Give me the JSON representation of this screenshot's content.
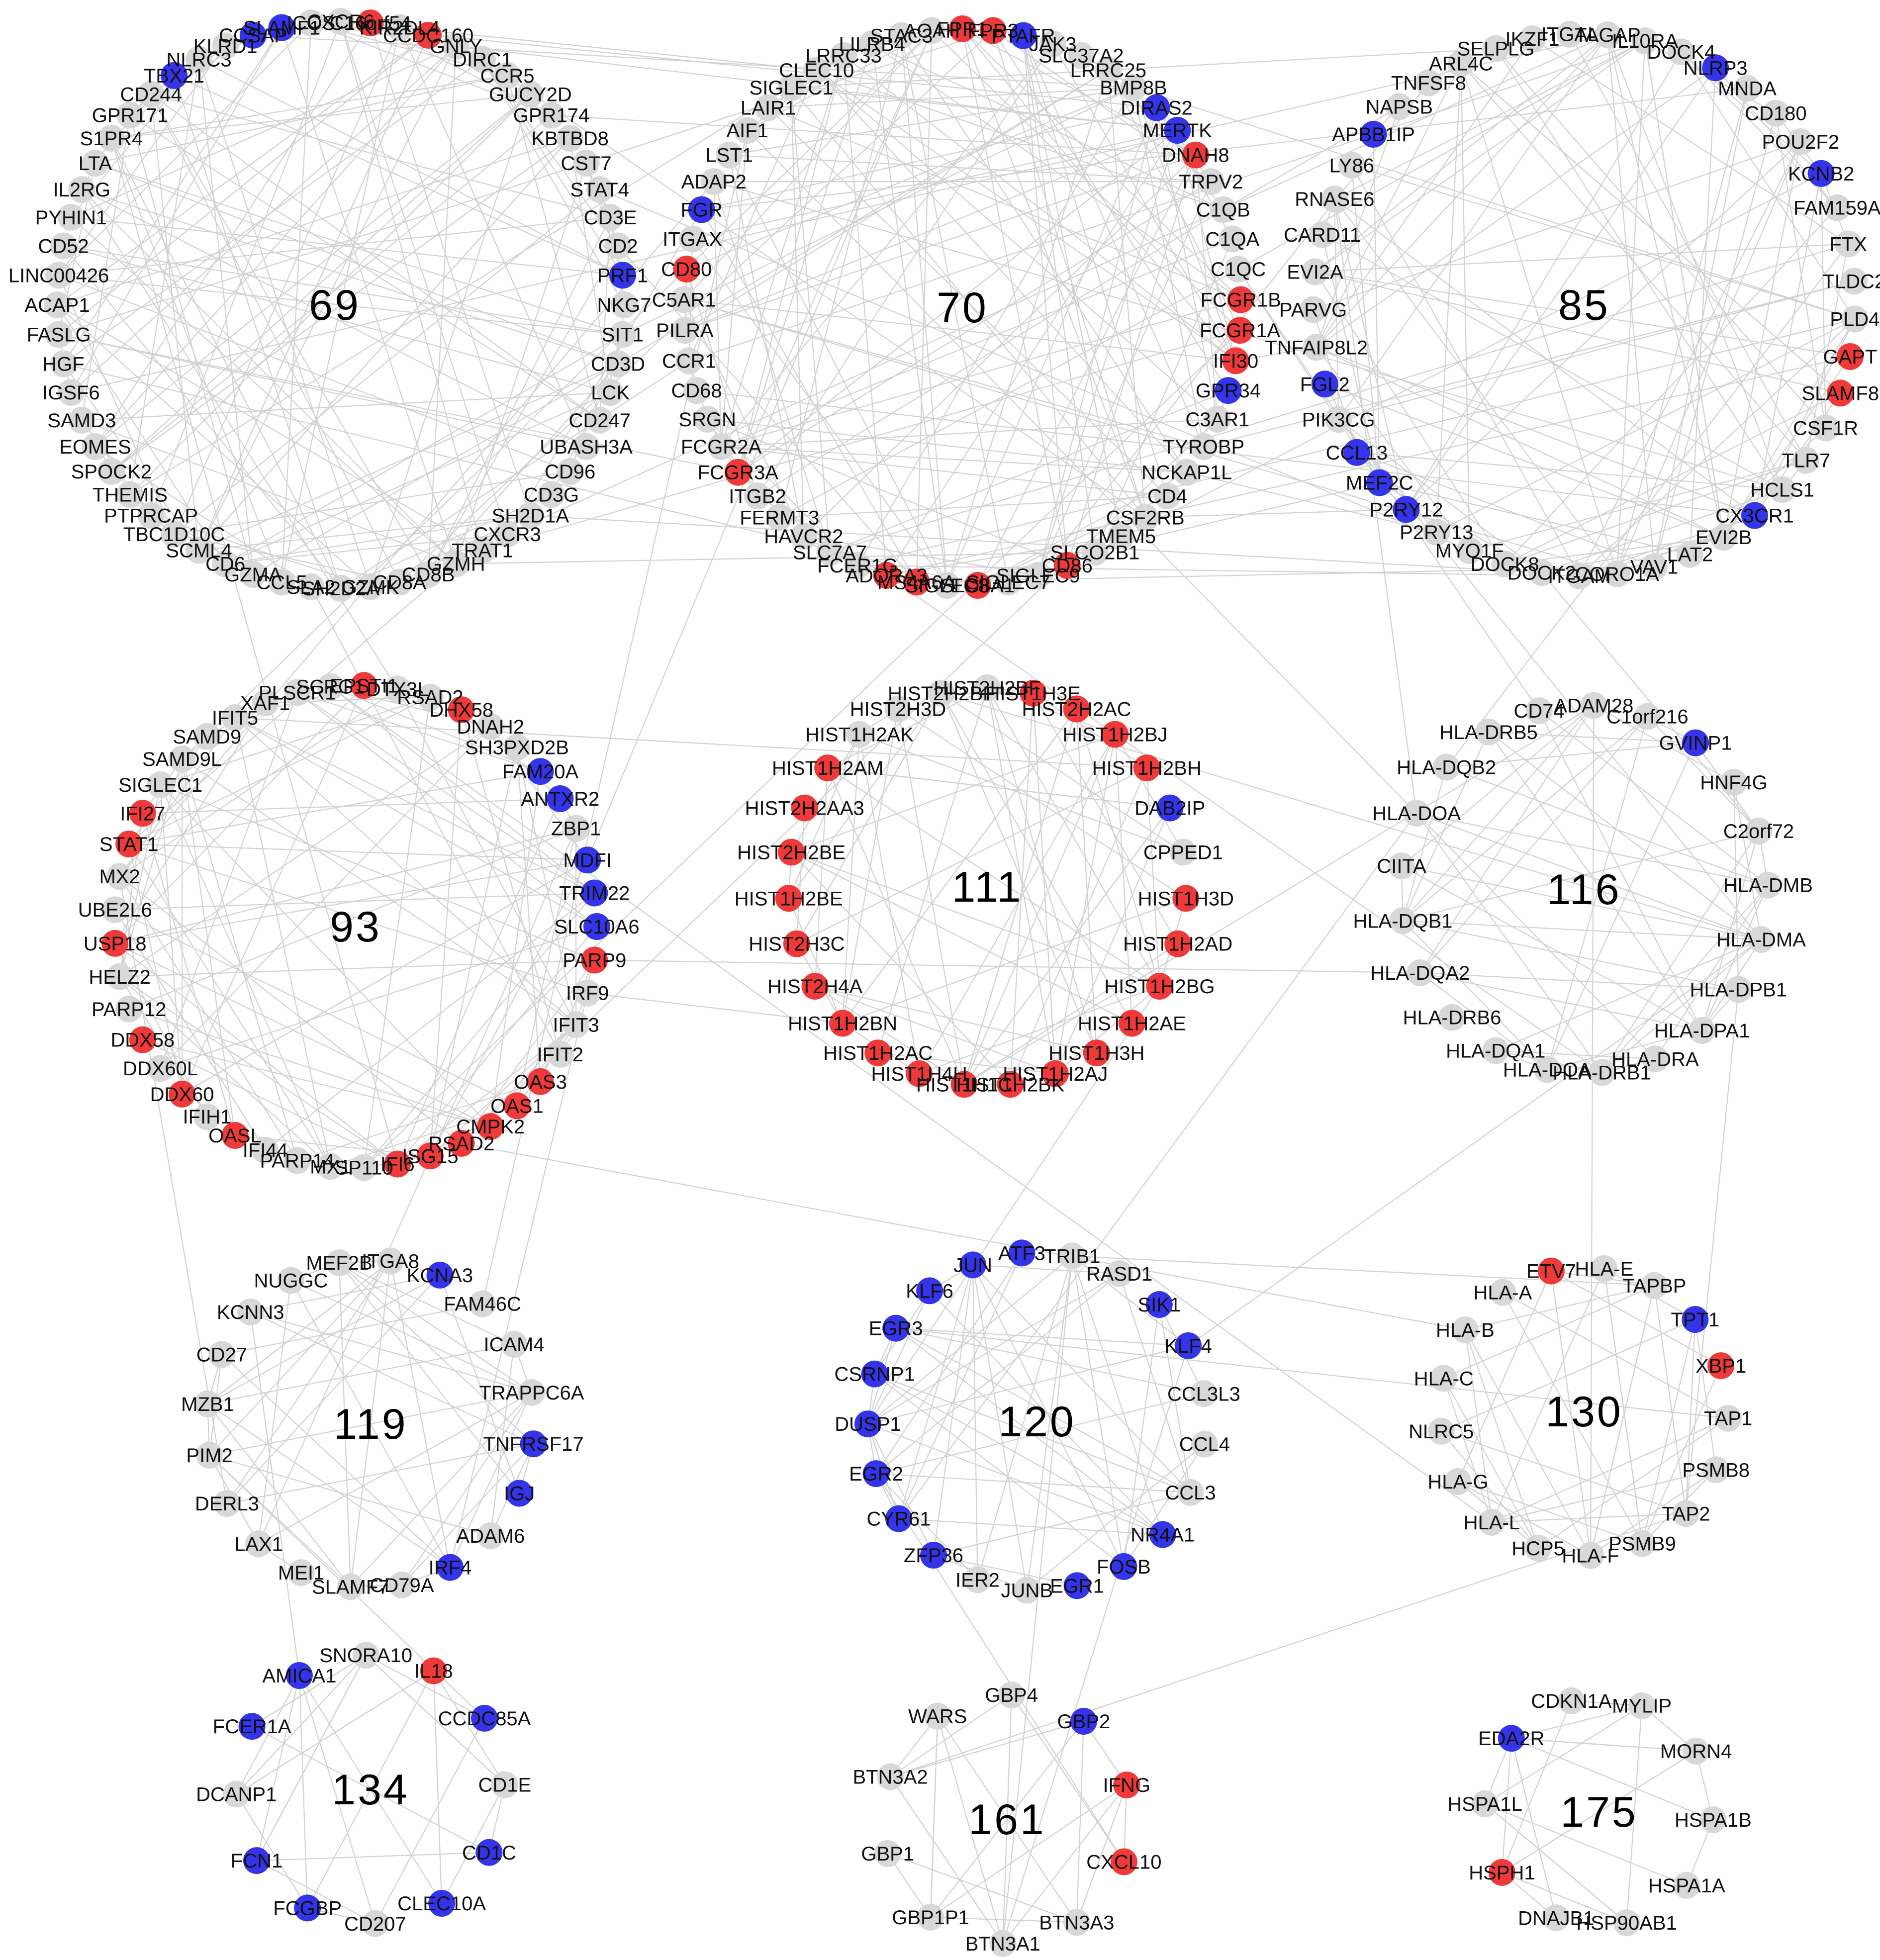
{
  "colors": {
    "up": "#f03a3a",
    "down": "#3434ea",
    "neutral": "#d8d8d8",
    "edge": "#d2d2d2"
  },
  "modules": [
    {
      "id": "69",
      "genes": [
        [
          "CXCR6",
          "n"
        ],
        [
          "C16orf54",
          "u"
        ],
        [
          "KIR2DL4",
          "n"
        ],
        [
          "CCDC160",
          "u"
        ],
        [
          "GNLY",
          "n"
        ],
        [
          "DIRC1",
          "n"
        ],
        [
          "CCR5",
          "n"
        ],
        [
          "GUCY2D",
          "n"
        ],
        [
          "GPR174",
          "n"
        ],
        [
          "KBTBD8",
          "n"
        ],
        [
          "CST7",
          "n"
        ],
        [
          "STAT4",
          "n"
        ],
        [
          "CD3E",
          "n"
        ],
        [
          "CD2",
          "n"
        ],
        [
          "PRF1",
          "d"
        ],
        [
          "NKG7",
          "n"
        ],
        [
          "SIT1",
          "n"
        ],
        [
          "CD3D",
          "n"
        ],
        [
          "LCK",
          "n"
        ],
        [
          "CD247",
          "n"
        ],
        [
          "UBASH3A",
          "n"
        ],
        [
          "CD96",
          "n"
        ],
        [
          "CD3G",
          "n"
        ],
        [
          "SH2D1A",
          "n"
        ],
        [
          "CXCR3",
          "n"
        ],
        [
          "TRAT1",
          "n"
        ],
        [
          "GZMH",
          "n"
        ],
        [
          "CD8B",
          "n"
        ],
        [
          "CD8A",
          "n"
        ],
        [
          "GZMK",
          "n"
        ],
        [
          "SH2D2A",
          "n"
        ],
        [
          "SLA2",
          "n"
        ],
        [
          "CCL5",
          "n"
        ],
        [
          "GZMA",
          "n"
        ],
        [
          "CD6",
          "n"
        ],
        [
          "SCML4",
          "n"
        ],
        [
          "TBC1D10C",
          "n"
        ],
        [
          "PTPRCAP",
          "n"
        ],
        [
          "THEMIS",
          "n"
        ],
        [
          "SPOCK2",
          "n"
        ],
        [
          "EOMES",
          "n"
        ],
        [
          "SAMD3",
          "n"
        ],
        [
          "IGSF6",
          "n"
        ],
        [
          "HGF",
          "n"
        ],
        [
          "FASLG",
          "n"
        ],
        [
          "ACAP1",
          "n"
        ],
        [
          "LINC00426",
          "n"
        ],
        [
          "CD52",
          "n"
        ],
        [
          "PYHIN1",
          "n"
        ],
        [
          "IL2RG",
          "n"
        ],
        [
          "LTA",
          "n"
        ],
        [
          "S1PR4",
          "n"
        ],
        [
          "GPR171",
          "n"
        ],
        [
          "CD244",
          "n"
        ],
        [
          "TBX21",
          "d"
        ],
        [
          "NLRC3",
          "n"
        ],
        [
          "KLRD1",
          "n"
        ],
        [
          "CCSAP",
          "d"
        ],
        [
          "SLAMF1",
          "d"
        ],
        [
          "ICOS",
          "n"
        ]
      ]
    },
    {
      "id": "70",
      "genes": [
        [
          "FPR1",
          "u"
        ],
        [
          "FPR3",
          "u"
        ],
        [
          "PTAFR",
          "d"
        ],
        [
          "JAK3",
          "n"
        ],
        [
          "SLC37A2",
          "n"
        ],
        [
          "LRRC25",
          "n"
        ],
        [
          "BMP8B",
          "n"
        ],
        [
          "DIRAS2",
          "d"
        ],
        [
          "MERTK",
          "d"
        ],
        [
          "DNAH8",
          "u"
        ],
        [
          "TRPV2",
          "n"
        ],
        [
          "C1QB",
          "n"
        ],
        [
          "C1QA",
          "n"
        ],
        [
          "C1QC",
          "n"
        ],
        [
          "FCGR1B",
          "u"
        ],
        [
          "FCGR1A",
          "u"
        ],
        [
          "IFI30",
          "u"
        ],
        [
          "GPR34",
          "d"
        ],
        [
          "C3AR1",
          "n"
        ],
        [
          "TYROBP",
          "n"
        ],
        [
          "NCKAP1L",
          "n"
        ],
        [
          "CD4",
          "n"
        ],
        [
          "CSF2RB",
          "n"
        ],
        [
          "TMEM5",
          "n"
        ],
        [
          "SLCO2B1",
          "n"
        ],
        [
          "CD86",
          "u"
        ],
        [
          "SIGLEC9",
          "n"
        ],
        [
          "SIGLEC7",
          "n"
        ],
        [
          "SLC8A1",
          "u"
        ],
        [
          "SIGLEC8",
          "n"
        ],
        [
          "MS4A6A",
          "u"
        ],
        [
          "ADORA3",
          "u"
        ],
        [
          "FCER1G",
          "n"
        ],
        [
          "SLC7A7",
          "n"
        ],
        [
          "HAVCR2",
          "n"
        ],
        [
          "FERMT3",
          "n"
        ],
        [
          "ITGB2",
          "n"
        ],
        [
          "FCGR3A",
          "u"
        ],
        [
          "FCGR2A",
          "n"
        ],
        [
          "SRGN",
          "n"
        ],
        [
          "CD68",
          "n"
        ],
        [
          "CCR1",
          "n"
        ],
        [
          "PILRA",
          "n"
        ],
        [
          "C5AR1",
          "n"
        ],
        [
          "CD80",
          "u"
        ],
        [
          "ITGAX",
          "n"
        ],
        [
          "FGR",
          "d"
        ],
        [
          "ADAP2",
          "n"
        ],
        [
          "LST1",
          "n"
        ],
        [
          "AIF1",
          "n"
        ],
        [
          "LAIR1",
          "n"
        ],
        [
          "SIGLEC1",
          "n"
        ],
        [
          "CLEC10",
          "n"
        ],
        [
          "LRRC33",
          "n"
        ],
        [
          "LILRB4",
          "n"
        ],
        [
          "STAC3",
          "n"
        ],
        [
          "AOAH",
          "n"
        ]
      ]
    },
    {
      "id": "85",
      "genes": [
        [
          "TAGAP",
          "n"
        ],
        [
          "IL10RA",
          "n"
        ],
        [
          "DOCK4",
          "n"
        ],
        [
          "NLRP3",
          "d"
        ],
        [
          "MNDA",
          "n"
        ],
        [
          "CD180",
          "n"
        ],
        [
          "POU2F2",
          "n"
        ],
        [
          "KCNB2",
          "d"
        ],
        [
          "FAM159A",
          "n"
        ],
        [
          "FTX",
          "n"
        ],
        [
          "TLDC2",
          "n"
        ],
        [
          "PLD4",
          "n"
        ],
        [
          "GAPT",
          "u"
        ],
        [
          "SLAMF8",
          "u"
        ],
        [
          "CSF1R",
          "n"
        ],
        [
          "TLR7",
          "n"
        ],
        [
          "HCLS1",
          "n"
        ],
        [
          "CX3CR1",
          "d"
        ],
        [
          "EVI2B",
          "n"
        ],
        [
          "LAT2",
          "n"
        ],
        [
          "VAV1",
          "n"
        ],
        [
          "CORO1A",
          "n"
        ],
        [
          "ITGAM",
          "n"
        ],
        [
          "DOCK2",
          "n"
        ],
        [
          "DOCK8",
          "n"
        ],
        [
          "MYO1F",
          "n"
        ],
        [
          "P2RY13",
          "n"
        ],
        [
          "P2RY12",
          "d"
        ],
        [
          "MEF2C",
          "d"
        ],
        [
          "CCL13",
          "d"
        ],
        [
          "PIK3CG",
          "n"
        ],
        [
          "FGL2",
          "d"
        ],
        [
          "TNFAIP8L2",
          "n"
        ],
        [
          "PARVG",
          "n"
        ],
        [
          "EVI2A",
          "n"
        ],
        [
          "CARD11",
          "n"
        ],
        [
          "RNASE6",
          "n"
        ],
        [
          "LY86",
          "n"
        ],
        [
          "APBB1IP",
          "d"
        ],
        [
          "NAPSB",
          "n"
        ],
        [
          "TNFSF8",
          "n"
        ],
        [
          "ARL4C",
          "n"
        ],
        [
          "SELPLG",
          "n"
        ],
        [
          "IKZF1",
          "n"
        ],
        [
          "ITGAL",
          "n"
        ]
      ]
    },
    {
      "id": "93",
      "genes": [
        [
          "DTX3L",
          "n"
        ],
        [
          "RSAD2",
          "n"
        ],
        [
          "DHX58",
          "u"
        ],
        [
          "DNAH2",
          "n"
        ],
        [
          "SH3PXD2B",
          "n"
        ],
        [
          "FAM20A",
          "d"
        ],
        [
          "ANTXR2",
          "d"
        ],
        [
          "ZBP1",
          "n"
        ],
        [
          "MDFI",
          "d"
        ],
        [
          "TRIM22",
          "d"
        ],
        [
          "SLC10A6",
          "d"
        ],
        [
          "PARP9",
          "u"
        ],
        [
          "IRF9",
          "n"
        ],
        [
          "IFIT3",
          "n"
        ],
        [
          "IFIT2",
          "n"
        ],
        [
          "OAS3",
          "u"
        ],
        [
          "OAS1",
          "u"
        ],
        [
          "CMPK2",
          "u"
        ],
        [
          "RSAD2",
          "u"
        ],
        [
          "ISG15",
          "u"
        ],
        [
          "IFI6",
          "u"
        ],
        [
          "SP110",
          "n"
        ],
        [
          "MX1",
          "n"
        ],
        [
          "PARP14",
          "n"
        ],
        [
          "IFI44",
          "n"
        ],
        [
          "OASL",
          "u"
        ],
        [
          "IFIH1",
          "n"
        ],
        [
          "DDX60",
          "u"
        ],
        [
          "DDX60L",
          "n"
        ],
        [
          "DDX58",
          "u"
        ],
        [
          "PARP12",
          "n"
        ],
        [
          "HELZ2",
          "n"
        ],
        [
          "USP18",
          "u"
        ],
        [
          "UBE2L6",
          "n"
        ],
        [
          "MX2",
          "n"
        ],
        [
          "STAT1",
          "u"
        ],
        [
          "IFI27",
          "u"
        ],
        [
          "SIGLEC1",
          "n"
        ],
        [
          "SAMD9L",
          "n"
        ],
        [
          "SAMD9",
          "n"
        ],
        [
          "IFIT5",
          "n"
        ],
        [
          "XAF1",
          "n"
        ],
        [
          "PLSCR1",
          "n"
        ],
        [
          "SCRG1",
          "n"
        ],
        [
          "EPSTI1",
          "u"
        ]
      ]
    },
    {
      "id": "111",
      "genes": [
        [
          "HIST2H2BF",
          "n"
        ],
        [
          "HIST1H3E",
          "u"
        ],
        [
          "HIST2H2AC",
          "u"
        ],
        [
          "HIST1H2BJ",
          "u"
        ],
        [
          "HIST1H2BH",
          "u"
        ],
        [
          "DAB2IP",
          "d"
        ],
        [
          "CPPED1",
          "n"
        ],
        [
          "HIST1H3D",
          "u"
        ],
        [
          "HIST1H2AD",
          "u"
        ],
        [
          "HIST1H2BG",
          "u"
        ],
        [
          "HIST1H2AE",
          "u"
        ],
        [
          "HIST1H3H",
          "u"
        ],
        [
          "HIST1H2AJ",
          "u"
        ],
        [
          "HIST1H2BK",
          "u"
        ],
        [
          "HIST1H1C",
          "u"
        ],
        [
          "HIST1H4H",
          "u"
        ],
        [
          "HIST1H2AC",
          "u"
        ],
        [
          "HIST1H2BN",
          "u"
        ],
        [
          "HIST2H4A",
          "u"
        ],
        [
          "HIST2H3C",
          "u"
        ],
        [
          "HIST1H2BE",
          "u"
        ],
        [
          "HIST2H2BE",
          "u"
        ],
        [
          "HIST2H2AA3",
          "u"
        ],
        [
          "HIST1H2AM",
          "u"
        ],
        [
          "HIST1H2AK",
          "n"
        ],
        [
          "HIST2H3D",
          "n"
        ],
        [
          "HIST2H2BF",
          "n"
        ]
      ]
    },
    {
      "id": "116",
      "genes": [
        [
          "ADAM28",
          "n"
        ],
        [
          "C1orf216",
          "n"
        ],
        [
          "GVINP1",
          "d"
        ],
        [
          "HNF4G",
          "n"
        ],
        [
          "C2orf72",
          "n"
        ],
        [
          "HLA-DMB",
          "n"
        ],
        [
          "HLA-DMA",
          "n"
        ],
        [
          "HLA-DPB1",
          "n"
        ],
        [
          "HLA-DPA1",
          "n"
        ],
        [
          "HLA-DRA",
          "n"
        ],
        [
          "HLA-DRB1",
          "n"
        ],
        [
          "HLA-DOA",
          "n"
        ],
        [
          "HLA-DQA1",
          "n"
        ],
        [
          "HLA-DRB6",
          "n"
        ],
        [
          "HLA-DQA2",
          "n"
        ],
        [
          "HLA-DQB1",
          "n"
        ],
        [
          "CIITA",
          "n"
        ],
        [
          "HLA-DOA",
          "n"
        ],
        [
          "HLA-DQB2",
          "n"
        ],
        [
          "HLA-DRB5",
          "n"
        ],
        [
          "CD74",
          "n"
        ]
      ]
    },
    {
      "id": "119",
      "genes": [
        [
          "ITGA8",
          "n"
        ],
        [
          "KCNA3",
          "d"
        ],
        [
          "FAM46C",
          "n"
        ],
        [
          "ICAM4",
          "n"
        ],
        [
          "TRAPPC6A",
          "n"
        ],
        [
          "TNFRSF17",
          "d"
        ],
        [
          "IGJ",
          "d"
        ],
        [
          "ADAM6",
          "n"
        ],
        [
          "IRF4",
          "d"
        ],
        [
          "CD79A",
          "n"
        ],
        [
          "SLAMF7",
          "n"
        ],
        [
          "MEI1",
          "n"
        ],
        [
          "LAX1",
          "n"
        ],
        [
          "DERL3",
          "n"
        ],
        [
          "PIM2",
          "n"
        ],
        [
          "MZB1",
          "n"
        ],
        [
          "CD27",
          "n"
        ],
        [
          "KCNN3",
          "n"
        ],
        [
          "NUGGC",
          "n"
        ],
        [
          "MEF2B",
          "n"
        ]
      ]
    },
    {
      "id": "120",
      "genes": [
        [
          "TRIB1",
          "n"
        ],
        [
          "RASD1",
          "n"
        ],
        [
          "SIK1",
          "d"
        ],
        [
          "KLF4",
          "d"
        ],
        [
          "CCL3L3",
          "n"
        ],
        [
          "CCL4",
          "n"
        ],
        [
          "CCL3",
          "n"
        ],
        [
          "NR4A1",
          "d"
        ],
        [
          "FOSB",
          "d"
        ],
        [
          "EGR1",
          "d"
        ],
        [
          "JUNB",
          "n"
        ],
        [
          "IER2",
          "n"
        ],
        [
          "ZFP36",
          "d"
        ],
        [
          "CYR61",
          "d"
        ],
        [
          "EGR2",
          "d"
        ],
        [
          "DUSP1",
          "d"
        ],
        [
          "CSRNP1",
          "d"
        ],
        [
          "EGR3",
          "d"
        ],
        [
          "KLF6",
          "d"
        ],
        [
          "JUN",
          "d"
        ],
        [
          "ATF3",
          "d"
        ]
      ]
    },
    {
      "id": "130",
      "genes": [
        [
          "HLA-E",
          "n"
        ],
        [
          "TAPBP",
          "n"
        ],
        [
          "TPT1",
          "d"
        ],
        [
          "XBP1",
          "u"
        ],
        [
          "TAP1",
          "n"
        ],
        [
          "PSMB8",
          "n"
        ],
        [
          "TAP2",
          "n"
        ],
        [
          "PSMB9",
          "n"
        ],
        [
          "HLA-F",
          "n"
        ],
        [
          "HCP5",
          "n"
        ],
        [
          "HLA-L",
          "n"
        ],
        [
          "HLA-G",
          "n"
        ],
        [
          "NLRC5",
          "n"
        ],
        [
          "HLA-C",
          "n"
        ],
        [
          "HLA-B",
          "n"
        ],
        [
          "HLA-A",
          "n"
        ],
        [
          "ETV7",
          "u"
        ]
      ]
    },
    {
      "id": "134",
      "genes": [
        [
          "IL18",
          "u"
        ],
        [
          "CCDC85A",
          "d"
        ],
        [
          "CD1E",
          "n"
        ],
        [
          "CD1C",
          "d"
        ],
        [
          "CLEC10A",
          "d"
        ],
        [
          "CD207",
          "n"
        ],
        [
          "FCGBP",
          "d"
        ],
        [
          "FCN1",
          "d"
        ],
        [
          "DCANP1",
          "n"
        ],
        [
          "FCER1A",
          "d"
        ],
        [
          "AMICA1",
          "d"
        ],
        [
          "SNORA10",
          "n"
        ]
      ]
    },
    {
      "id": "161",
      "genes": [
        [
          "GBP2",
          "d"
        ],
        [
          "IFNG",
          "u"
        ],
        [
          "CXCL10",
          "u"
        ],
        [
          "BTN3A3",
          "n"
        ],
        [
          "BTN3A1",
          "n"
        ],
        [
          "GBP1P1",
          "n"
        ],
        [
          "GBP1",
          "n"
        ],
        [
          "BTN3A2",
          "n"
        ],
        [
          "WARS",
          "n"
        ],
        [
          "GBP4",
          "n"
        ]
      ]
    },
    {
      "id": "175",
      "genes": [
        [
          "MYLIP",
          "n"
        ],
        [
          "MORN4",
          "n"
        ],
        [
          "HSPA1B",
          "n"
        ],
        [
          "HSPA1A",
          "n"
        ],
        [
          "HSP90AB1",
          "n"
        ],
        [
          "DNAJB1",
          "n"
        ],
        [
          "HSPH1",
          "u"
        ],
        [
          "HSPA1L",
          "n"
        ],
        [
          "EDA2R",
          "d"
        ],
        [
          "CDKN1A",
          "n"
        ]
      ]
    }
  ]
}
